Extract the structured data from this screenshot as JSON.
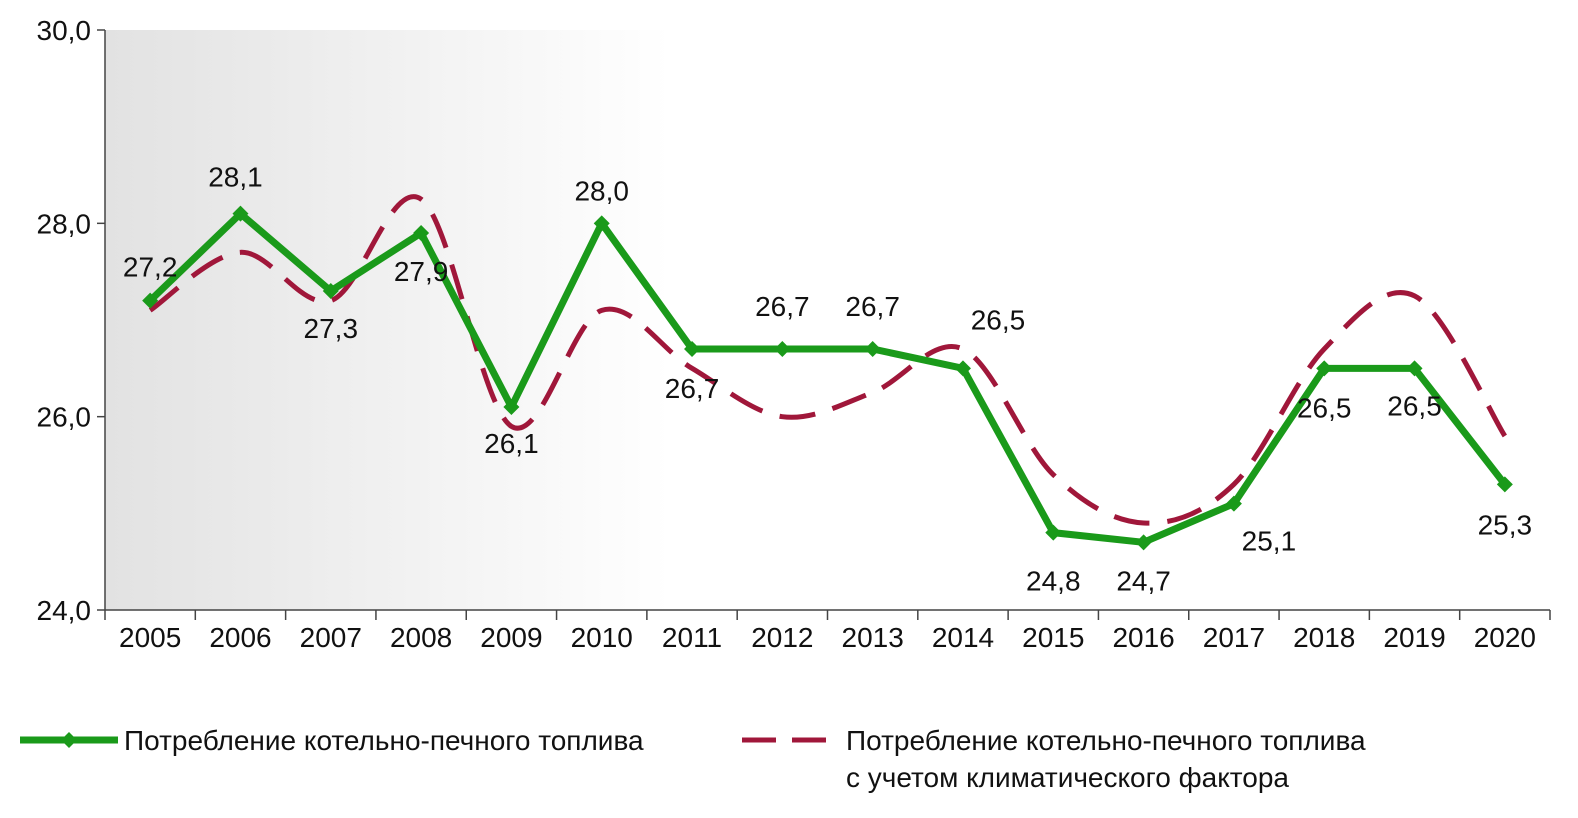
{
  "chart_data": {
    "type": "line",
    "categories": [
      "2005",
      "2006",
      "2007",
      "2008",
      "2009",
      "2010",
      "2011",
      "2012",
      "2013",
      "2014",
      "2015",
      "2016",
      "2017",
      "2018",
      "2019",
      "2020"
    ],
    "ylim": [
      24.0,
      30.0
    ],
    "yticks": [
      "24,0",
      "26,0",
      "28,0",
      "30,0"
    ],
    "ytick_values": [
      24,
      26,
      28,
      30
    ],
    "grid": false,
    "legend_position": "bottom",
    "series": [
      {
        "name": "Потребление котельно-печного топлива",
        "values": [
          27.2,
          28.1,
          27.3,
          27.9,
          26.1,
          28.0,
          26.7,
          26.7,
          26.7,
          26.5,
          24.8,
          24.7,
          25.1,
          26.5,
          26.5,
          25.3
        ],
        "labels": [
          "27,2",
          "28,1",
          "27,3",
          "27,9",
          "26,1",
          "28,0",
          "26,7",
          "26,7",
          "26,7",
          "26,5",
          "24,8",
          "24,7",
          "25,1",
          "26,5",
          "26,5",
          "25,3"
        ],
        "color": "#1a9a1a",
        "style": "solid"
      },
      {
        "name_line1": "Потребление котельно-печного топлива",
        "name_line2": "с учетом климатического фактора",
        "values": [
          27.1,
          27.7,
          27.2,
          28.25,
          25.9,
          27.1,
          26.5,
          26.0,
          26.25,
          26.7,
          25.4,
          24.9,
          25.3,
          26.7,
          27.25,
          25.8
        ],
        "color": "#a0173a",
        "style": "dashed"
      }
    ]
  }
}
